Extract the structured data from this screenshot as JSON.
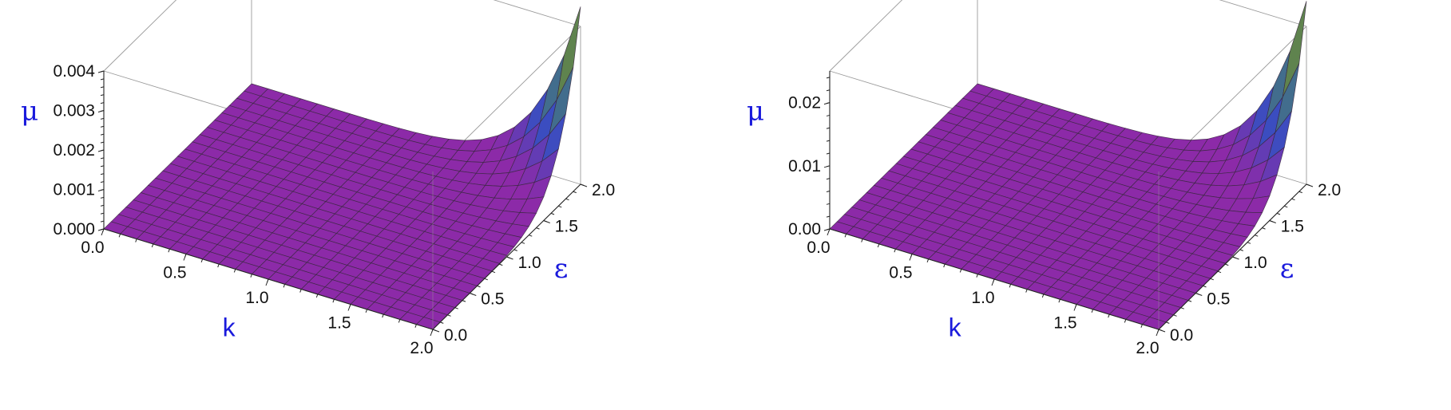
{
  "chart_data": [
    {
      "type": "surface3d",
      "x_label": "k",
      "y_label": "ε",
      "z_label": "μ",
      "x_range": [
        0,
        2
      ],
      "y_range": [
        0,
        2
      ],
      "z_range": [
        0,
        0.004
      ],
      "x_ticks": [
        "0.0",
        "0.5",
        "1.0",
        "1.5",
        "2.0"
      ],
      "y_ticks": [
        "0.0",
        "0.5",
        "1.0",
        "1.5",
        "2.0"
      ],
      "z_ticks": [
        "0.000",
        "0.001",
        "0.002",
        "0.003",
        "0.004"
      ],
      "grid_n": 20,
      "surface_peak": {
        "k": 2.0,
        "epsilon": 2.0,
        "mu": 0.0045
      },
      "surface_shape": "flat near zero, rising steeply toward k = 2.0, ε = 2.0",
      "colors": {
        "low": "#8c2aa8",
        "mid": "#3a4ec0",
        "high": "#b0621e"
      }
    },
    {
      "type": "surface3d",
      "x_label": "k",
      "y_label": "ε",
      "z_label": "μ",
      "x_range": [
        0,
        2
      ],
      "y_range": [
        0,
        2
      ],
      "z_range": [
        0,
        0.025
      ],
      "x_ticks": [
        "0.0",
        "0.5",
        "1.0",
        "1.5",
        "2.0"
      ],
      "y_ticks": [
        "0.0",
        "0.5",
        "1.0",
        "1.5",
        "2.0"
      ],
      "z_ticks": [
        "0.00",
        "0.01",
        "0.02"
      ],
      "grid_n": 20,
      "surface_peak": {
        "k": 2.0,
        "epsilon": 2.0,
        "mu": 0.029
      },
      "surface_shape": "flat near zero, rising steeply toward k = 2.0, ε = 2.0",
      "colors": {
        "low": "#8c2aa8",
        "mid": "#3a4ec0",
        "high": "#b0621e"
      }
    }
  ]
}
